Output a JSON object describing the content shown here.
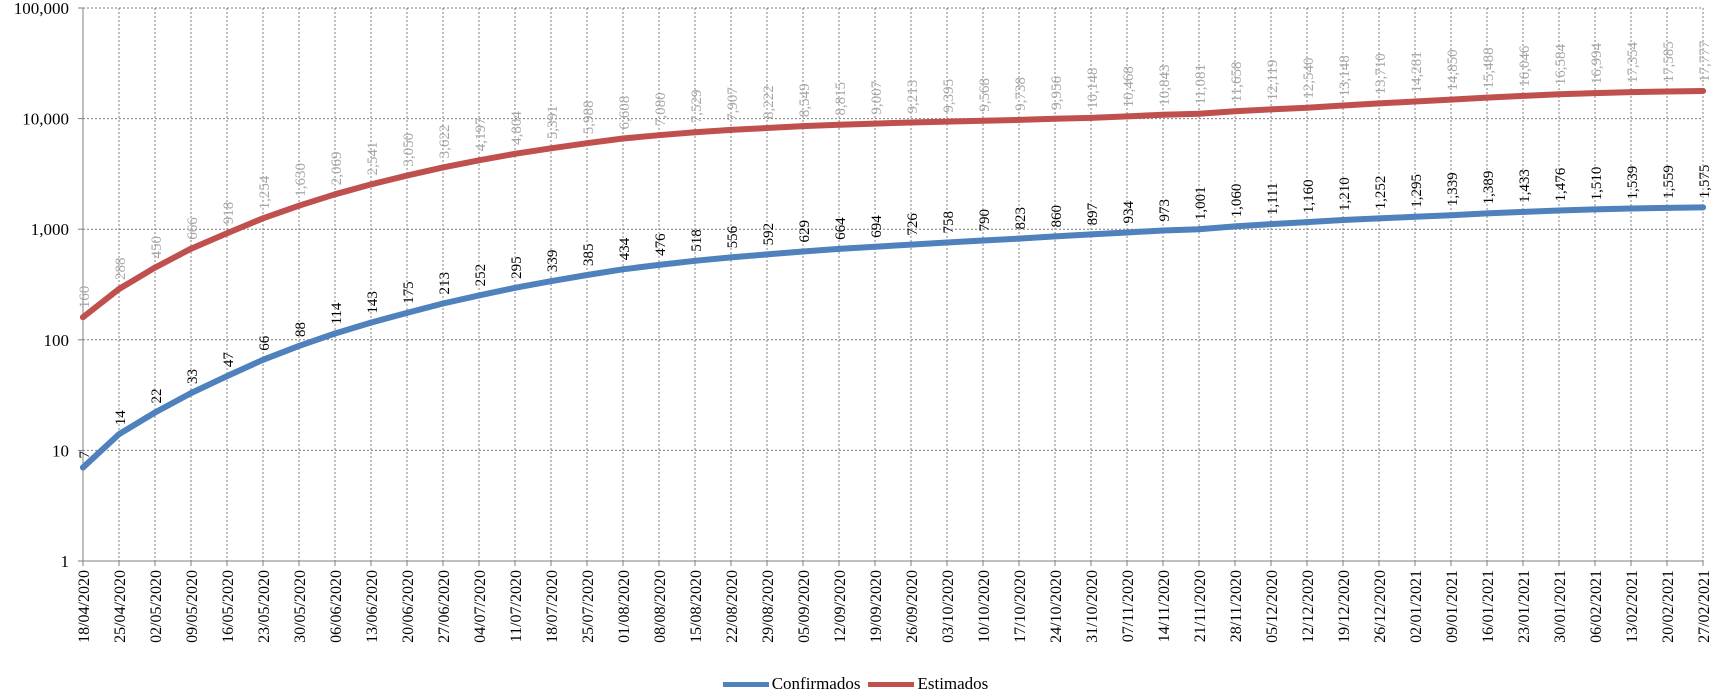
{
  "chart_data": {
    "type": "line",
    "y_scale": "log",
    "ylim": [
      1,
      100000
    ],
    "y_ticks": [
      "1",
      "10",
      "100",
      "1,000",
      "10,000",
      "100,000"
    ],
    "grid": true,
    "legend_placement": "bottom",
    "x": [
      "18/04/2020",
      "25/04/2020",
      "02/05/2020",
      "09/05/2020",
      "16/05/2020",
      "23/05/2020",
      "30/05/2020",
      "06/06/2020",
      "13/06/2020",
      "20/06/2020",
      "27/06/2020",
      "04/07/2020",
      "11/07/2020",
      "18/07/2020",
      "25/07/2020",
      "01/08/2020",
      "08/08/2020",
      "15/08/2020",
      "22/08/2020",
      "29/08/2020",
      "05/09/2020",
      "12/09/2020",
      "19/09/2020",
      "26/09/2020",
      "03/10/2020",
      "10/10/2020",
      "17/10/2020",
      "24/10/2020",
      "31/10/2020",
      "07/11/2020",
      "14/11/2020",
      "21/11/2020",
      "28/11/2020",
      "05/12/2020",
      "12/12/2020",
      "19/12/2020",
      "26/12/2020",
      "02/01/2021",
      "09/01/2021",
      "16/01/2021",
      "23/01/2021",
      "30/01/2021",
      "06/02/2021",
      "13/02/2021",
      "20/02/2021",
      "27/02/2021"
    ],
    "series": [
      {
        "name": "Confirmados",
        "color": "#4F81BD",
        "label_color": "#000000",
        "values": [
          7,
          14,
          22,
          33,
          47,
          66,
          88,
          114,
          143,
          175,
          213,
          252,
          295,
          339,
          385,
          434,
          476,
          518,
          556,
          592,
          629,
          664,
          694,
          726,
          758,
          790,
          823,
          860,
          897,
          934,
          973,
          1001,
          1060,
          1111,
          1160,
          1210,
          1252,
          1295,
          1339,
          1389,
          1433,
          1476,
          1510,
          1539,
          1559,
          1575
        ],
        "labels": [
          "7",
          "14",
          "22",
          "33",
          "47",
          "66",
          "88",
          "114",
          "143",
          "175",
          "213",
          "252",
          "295",
          "339",
          "385",
          "434",
          "476",
          "518",
          "556",
          "592",
          "629",
          "664",
          "694",
          "726",
          "758",
          "790",
          "823",
          "860",
          "897",
          "934",
          "973",
          "1,001",
          "1,060",
          "1,111",
          "1,160",
          "1,210",
          "1,252",
          "1,295",
          "1,339",
          "1,389",
          "1,433",
          "1,476",
          "1,510",
          "1,539",
          "1,559",
          "1,575"
        ]
      },
      {
        "name": "Estimados",
        "color": "#C0504D",
        "label_color": "#A6A6A6",
        "values": [
          160,
          288,
          450,
          666,
          918,
          1254,
          1630,
          2069,
          2541,
          3050,
          3622,
          4197,
          4804,
          5391,
          5988,
          6608,
          7080,
          7529,
          7907,
          8222,
          8549,
          8815,
          9007,
          9213,
          9395,
          9568,
          9738,
          9956,
          10148,
          10468,
          10843,
          11081,
          11658,
          12119,
          12540,
          13148,
          13710,
          14281,
          14850,
          15488,
          16046,
          16584,
          16994,
          17354,
          17585,
          17777
        ],
        "labels": [
          "160",
          "288",
          "450",
          "666",
          "918",
          "1,254",
          "1,630",
          "2,069",
          "2,541",
          "3,050",
          "3,622",
          "4,197",
          "4,804",
          "5,391",
          "5,988",
          "6,608",
          "7,080",
          "7,529",
          "7,907",
          "8,222",
          "8,549",
          "8,815",
          "9,007",
          "9,213",
          "9,395",
          "9,568",
          "9,738",
          "9,956",
          "10,148",
          "10,468",
          "10,843",
          "11,081",
          "11,658",
          "12,119",
          "12,540",
          "13,148",
          "13,710",
          "14,281",
          "14,850",
          "15,488",
          "16,046",
          "16,584",
          "16,994",
          "17,354",
          "17,585",
          "17,777"
        ]
      }
    ]
  }
}
